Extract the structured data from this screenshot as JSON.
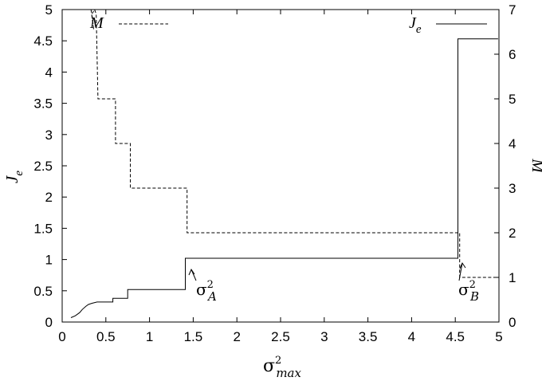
{
  "chart_data": {
    "type": "line",
    "xlabel": {
      "symbol": "σ",
      "sup": "2",
      "sub": "max"
    },
    "ylabel_left": {
      "symbol": "J",
      "sub": "e"
    },
    "ylabel_right": "M",
    "xlim": [
      0,
      5
    ],
    "ylim_left": [
      0,
      5
    ],
    "ylim_right": [
      0,
      7
    ],
    "x_ticks": [
      "0",
      "0.5",
      "1",
      "1.5",
      "2",
      "2.5",
      "3",
      "3.5",
      "4",
      "4.5",
      "5"
    ],
    "y_left_ticks": [
      "0",
      "0.5",
      "1",
      "1.5",
      "2",
      "2.5",
      "3",
      "3.5",
      "4",
      "4.5",
      "5"
    ],
    "y_right_ticks": [
      "0",
      "1",
      "2",
      "3",
      "4",
      "5",
      "6",
      "7"
    ],
    "legend_placement": "top",
    "grid": false,
    "series": [
      {
        "name": "J_e",
        "legend_label": {
          "symbol": "J",
          "sub": "e"
        },
        "axis": "left",
        "style": "solid",
        "color": "#000000",
        "points": [
          [
            0.1,
            0.07
          ],
          [
            0.15,
            0.1
          ],
          [
            0.2,
            0.15
          ],
          [
            0.23,
            0.2
          ],
          [
            0.27,
            0.25
          ],
          [
            0.3,
            0.28
          ],
          [
            0.34,
            0.3
          ],
          [
            0.4,
            0.32
          ],
          [
            0.58,
            0.32
          ],
          [
            0.58,
            0.38
          ],
          [
            0.75,
            0.38
          ],
          [
            0.75,
            0.52
          ],
          [
            1.41,
            0.52
          ],
          [
            1.41,
            1.02
          ],
          [
            4.53,
            1.02
          ],
          [
            4.53,
            4.53
          ],
          [
            4.99,
            4.53
          ]
        ]
      },
      {
        "name": "M",
        "legend_label": {
          "symbol": "M",
          "sub": ""
        },
        "axis": "right",
        "style": "dashed",
        "color": "#000000",
        "points": [
          [
            0.33,
            7.0
          ],
          [
            0.36,
            6.55
          ],
          [
            0.34,
            6.9
          ],
          [
            0.37,
            7.0
          ],
          [
            0.39,
            6.9
          ],
          [
            0.41,
            5.0
          ],
          [
            0.61,
            5.0
          ],
          [
            0.61,
            4.0
          ],
          [
            0.78,
            4.0
          ],
          [
            0.78,
            3.0
          ],
          [
            1.43,
            3.0
          ],
          [
            1.43,
            2.0
          ],
          [
            4.55,
            2.0
          ],
          [
            4.55,
            1.0
          ],
          [
            4.99,
            1.0
          ]
        ]
      }
    ],
    "annotations": [
      {
        "symbol": "σ",
        "sup": "2",
        "sub": "A",
        "point_x": 1.41,
        "point_y": 0.52
      },
      {
        "symbol": "σ",
        "sup": "2",
        "sub": "B",
        "point_x": 4.52,
        "point_y": 0.75
      }
    ]
  }
}
